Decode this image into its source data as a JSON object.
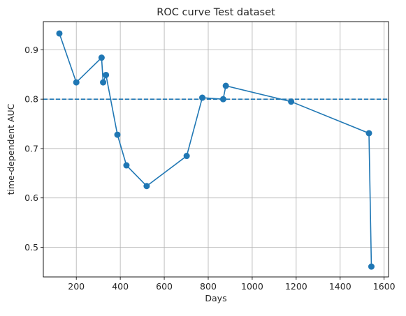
{
  "chart_data": {
    "type": "line",
    "title": "ROC curve Test dataset",
    "xlabel": "Days",
    "ylabel": "time-dependent AUC",
    "xlim": [
      50,
      1620
    ],
    "ylim": [
      0.44,
      0.957
    ],
    "xticks": [
      200,
      400,
      600,
      800,
      1000,
      1200,
      1400,
      1600
    ],
    "yticks": [
      0.5,
      0.6,
      0.7,
      0.8,
      0.9
    ],
    "xtick_labels": [
      "200",
      "400",
      "600",
      "800",
      "1000",
      "1200",
      "1400",
      "1600"
    ],
    "ytick_labels": [
      "0.5",
      "0.6",
      "0.7",
      "0.8",
      "0.9"
    ],
    "grid": true,
    "series": [
      {
        "color": "#1f77b4",
        "marker": "circle",
        "x": [
          123,
          200,
          315,
          322,
          335,
          387,
          428,
          520,
          702,
          773,
          868,
          880,
          1177,
          1531,
          1542
        ],
        "y": [
          0.933,
          0.834,
          0.884,
          0.834,
          0.849,
          0.728,
          0.666,
          0.624,
          0.685,
          0.803,
          0.8,
          0.827,
          0.795,
          0.731,
          0.461
        ]
      }
    ],
    "reference_line": {
      "orientation": "horizontal",
      "y": 0.8,
      "style": "dashed",
      "color": "#1f77b4"
    }
  }
}
